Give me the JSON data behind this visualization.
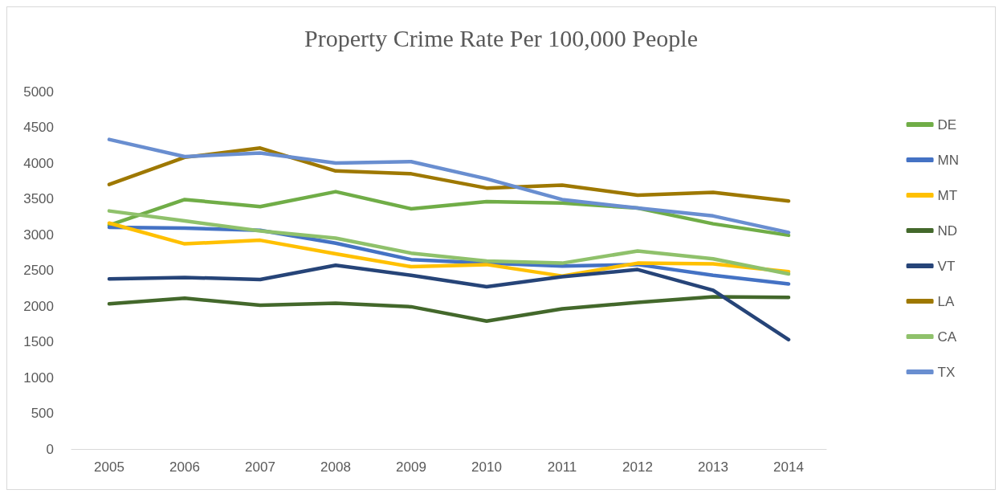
{
  "chart_data": {
    "type": "line",
    "title": "Property Crime Rate Per 100,000 People",
    "categories": [
      "2005",
      "2006",
      "2007",
      "2008",
      "2009",
      "2010",
      "2011",
      "2012",
      "2013",
      "2014"
    ],
    "series": [
      {
        "name": "DE",
        "color": "#70ad47",
        "values": [
          3130,
          3490,
          3390,
          3600,
          3360,
          3460,
          3440,
          3370,
          3150,
          2990
        ]
      },
      {
        "name": "MN",
        "color": "#4472c4",
        "values": [
          3100,
          3090,
          3060,
          2880,
          2650,
          2600,
          2560,
          2580,
          2430,
          2310
        ]
      },
      {
        "name": "MT",
        "color": "#ffc000",
        "values": [
          3160,
          2870,
          2920,
          2730,
          2550,
          2580,
          2420,
          2600,
          2590,
          2480
        ]
      },
      {
        "name": "ND",
        "color": "#43682b",
        "values": [
          2030,
          2110,
          2010,
          2040,
          1990,
          1790,
          1960,
          2050,
          2130,
          2120
        ]
      },
      {
        "name": "VT",
        "color": "#264478",
        "values": [
          2380,
          2400,
          2370,
          2570,
          2430,
          2270,
          2410,
          2510,
          2220,
          1530
        ]
      },
      {
        "name": "LA",
        "color": "#9e7800",
        "values": [
          3700,
          4080,
          4210,
          3890,
          3850,
          3650,
          3690,
          3550,
          3590,
          3470
        ]
      },
      {
        "name": "CA",
        "color": "#8fc16b",
        "values": [
          3330,
          3190,
          3050,
          2950,
          2740,
          2630,
          2600,
          2770,
          2660,
          2450
        ]
      },
      {
        "name": "TX",
        "color": "#698ed0",
        "values": [
          4330,
          4090,
          4140,
          4000,
          4020,
          3780,
          3490,
          3370,
          3260,
          3030
        ]
      }
    ],
    "ylim": [
      0,
      5000
    ],
    "yticks": [
      0,
      500,
      1000,
      1500,
      2000,
      2500,
      3000,
      3500,
      4000,
      4500,
      5000
    ],
    "grid": false,
    "legend": "right",
    "marker": "none",
    "line_style": "solid"
  }
}
